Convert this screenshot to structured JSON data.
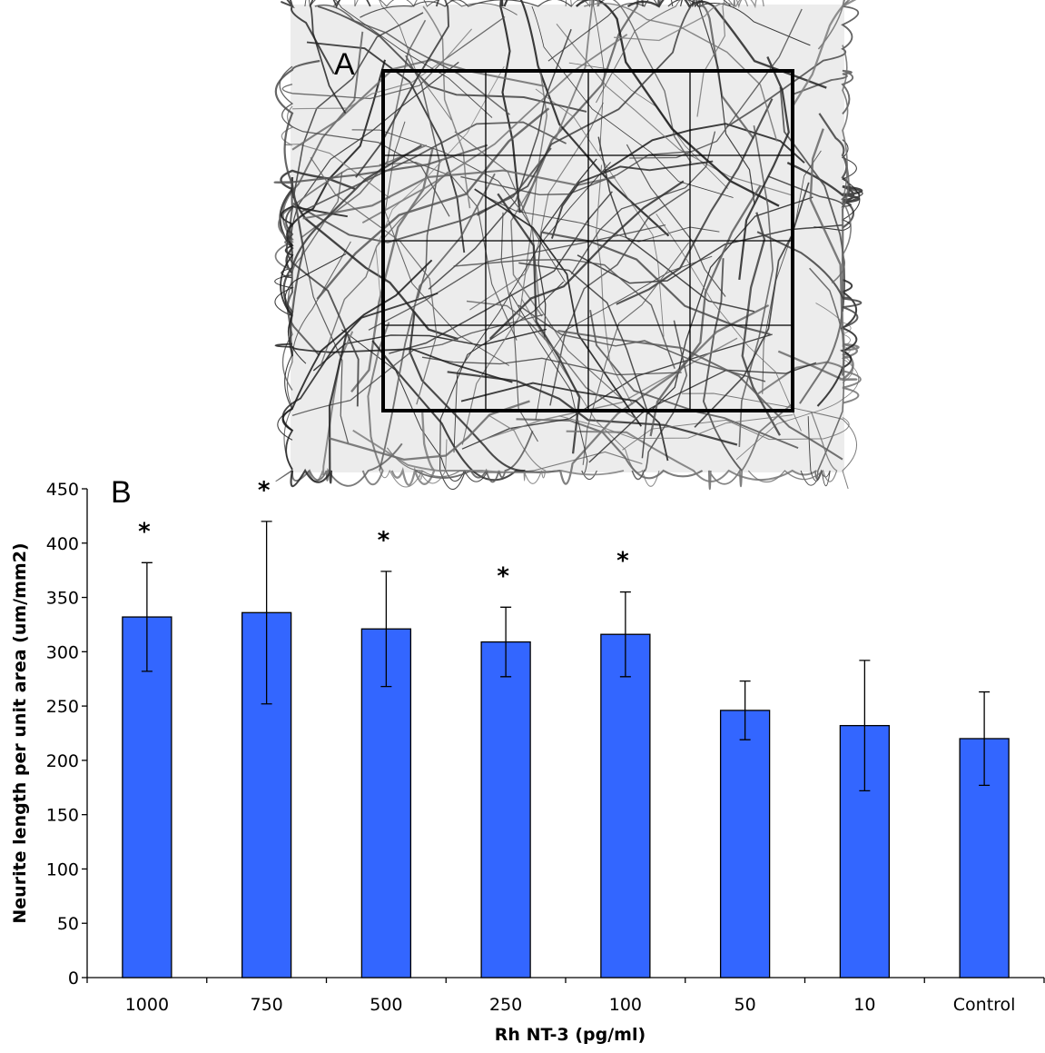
{
  "panel_a": {
    "label": "A"
  },
  "chart_data": {
    "type": "bar",
    "panel_label": "B",
    "x_label": "Rh NT-3 (pg/ml)",
    "y_label": "Neurite length per unit area (um/mm2)",
    "categories": [
      "1000",
      "750",
      "500",
      "250",
      "100",
      "50",
      "10",
      "Control"
    ],
    "values": [
      332,
      336,
      321,
      309,
      316,
      246,
      232,
      220
    ],
    "errors": [
      50,
      84,
      53,
      32,
      39,
      27,
      60,
      43
    ],
    "significance": [
      "*",
      "*",
      "*",
      "*",
      "*",
      null,
      null,
      null
    ],
    "color": "#3366ff",
    "ylim": [
      0,
      450
    ],
    "yticks": [
      0,
      50,
      100,
      150,
      200,
      250,
      300,
      350,
      400,
      450
    ]
  }
}
